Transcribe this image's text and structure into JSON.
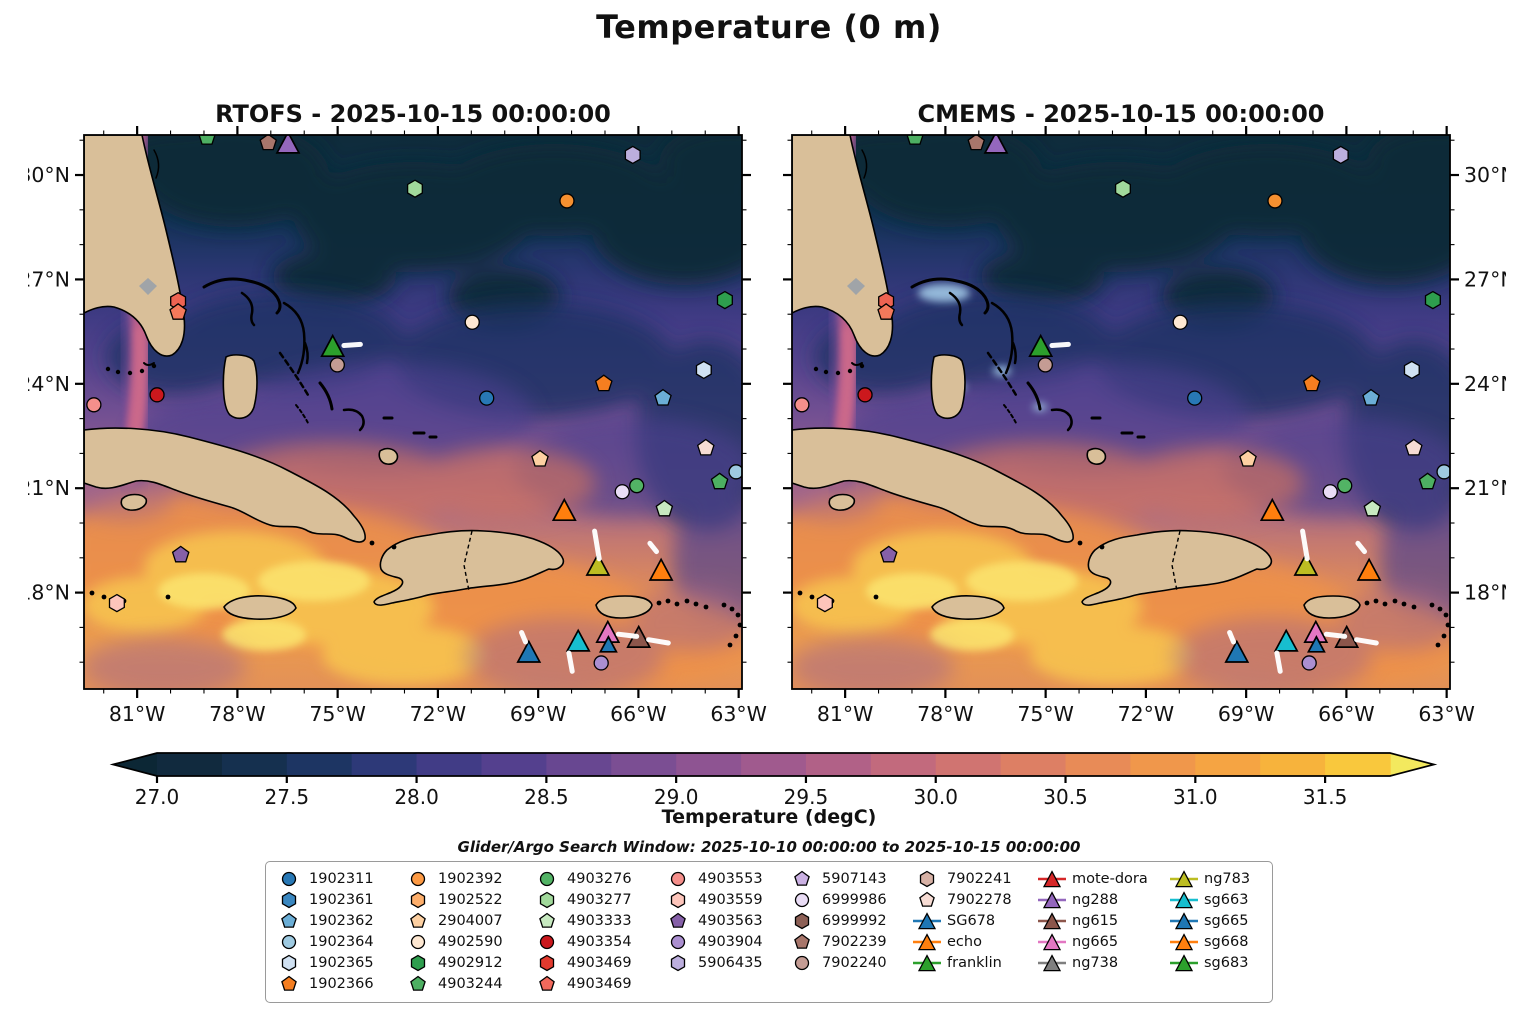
{
  "title": "Temperature (0 m)",
  "chart_data": {
    "type": "heatmap",
    "suptitle": "Temperature (0 m)",
    "subplots": [
      {
        "title": "RTOFS - 2025-10-15 00:00:00",
        "model": "RTOFS"
      },
      {
        "title": "CMEMS - 2025-10-15 00:00:00",
        "model": "CMEMS"
      }
    ],
    "axes": {
      "lon_left_w": 82.59,
      "lon_right_w": 62.9,
      "lat_top_n": 31.15,
      "lat_bottom_n": 15.23,
      "x_major_ticks_w": [
        81,
        78,
        75,
        72,
        69,
        66,
        63
      ],
      "x_tick_labels": [
        "81°W",
        "78°W",
        "75°W",
        "72°W",
        "69°W",
        "66°W",
        "63°W"
      ],
      "y_major_ticks_n": [
        30,
        27,
        24,
        21,
        18
      ],
      "y_tick_labels": [
        "30°N",
        "27°N",
        "24°N",
        "21°N",
        "18°N"
      ],
      "minor_tick_step_deg": 1
    },
    "colorbar": {
      "label": "Temperature (degC)",
      "vmin": 27.0,
      "vmax": 31.75,
      "tick_values": [
        27.0,
        27.5,
        28.0,
        28.5,
        29.0,
        29.5,
        30.0,
        30.5,
        31.0,
        31.5
      ],
      "tick_labels": [
        "27.0",
        "27.5",
        "28.0",
        "28.5",
        "29.0",
        "29.5",
        "30.0",
        "30.5",
        "31.0",
        "31.5"
      ],
      "segment_colors": [
        "#112a3e",
        "#15304f",
        "#1d3563",
        "#2d3978",
        "#413c86",
        "#54408e",
        "#684791",
        "#7b4e93",
        "#8e5492",
        "#a05a8e",
        "#b16187",
        "#c26a7d",
        "#d07471",
        "#dd7f64",
        "#e88b57",
        "#f0974b",
        "#f5a443",
        "#f7b33c",
        "#f9c83d"
      ],
      "under_color": "#0c2735",
      "over_color": "#f3e95e"
    },
    "footnote": "Glider/Argo Search Window: 2025-10-10 00:00:00 to 2025-10-15 00:00:00",
    "style": {
      "land_color": "#d9bf99",
      "coast_color": "#000000",
      "lake_color": "#a0a4a8",
      "track_color": "#ffffff",
      "shallow_bank_color": "#9fc6e4",
      "sea_gradient": [
        [
          0.0,
          "#0f2c3b"
        ],
        [
          0.08,
          "#102e44"
        ],
        [
          0.16,
          "#16335a"
        ],
        [
          0.24,
          "#293671"
        ],
        [
          0.33,
          "#403b84"
        ],
        [
          0.42,
          "#58458e"
        ],
        [
          0.5,
          "#714f92"
        ],
        [
          0.58,
          "#8c5b90"
        ],
        [
          0.66,
          "#a86a85"
        ],
        [
          0.74,
          "#c67a6f"
        ],
        [
          0.82,
          "#de8b5b"
        ],
        [
          0.9,
          "#eb9b4f"
        ],
        [
          1.0,
          "#e39157"
        ]
      ],
      "gulf_stream_halo": "#6d4b96",
      "gulf_stream_core": "#c4628b",
      "gulf_stream_bright": "#d06d8a"
    },
    "legend_columns": [
      [
        {
          "label": "1902311",
          "shape": "circle",
          "color": "#2878b5"
        },
        {
          "label": "1902361",
          "shape": "hexagon",
          "color": "#3a87c0"
        },
        {
          "label": "1902362",
          "shape": "pentagon",
          "color": "#6baed6"
        },
        {
          "label": "1902364",
          "shape": "circle",
          "color": "#9ecae1"
        },
        {
          "label": "1902365",
          "shape": "hexagon",
          "color": "#d0e1f2"
        },
        {
          "label": "1902366",
          "shape": "pentagon",
          "color": "#f57e20"
        }
      ],
      [
        {
          "label": "1902392",
          "shape": "circle",
          "color": "#fd9a44"
        },
        {
          "label": "1902522",
          "shape": "hexagon",
          "color": "#fdae6b"
        },
        {
          "label": "2904007",
          "shape": "pentagon",
          "color": "#fdd0a2"
        },
        {
          "label": "4902590",
          "shape": "circle",
          "color": "#fee8d2"
        },
        {
          "label": "4902912",
          "shape": "hexagon",
          "color": "#2e9e4e"
        },
        {
          "label": "4903244",
          "shape": "pentagon",
          "color": "#4daf62"
        }
      ],
      [
        {
          "label": "4903276",
          "shape": "circle",
          "color": "#52b365"
        },
        {
          "label": "4903277",
          "shape": "hexagon",
          "color": "#a1d99b"
        },
        {
          "label": "4903333",
          "shape": "pentagon",
          "color": "#c7e9c0"
        },
        {
          "label": "4903354",
          "shape": "circle",
          "color": "#cb181d"
        },
        {
          "label": "4903469",
          "shape": "hexagon",
          "color": "#e23a2e"
        },
        {
          "label": "4903469",
          "shape": "pentagon",
          "color": "#f2695c"
        }
      ],
      [
        {
          "label": "4903553",
          "shape": "circle",
          "color": "#f58f8b"
        },
        {
          "label": "4903559",
          "shape": "hexagon",
          "color": "#fdc5bb"
        },
        {
          "label": "4903563",
          "shape": "pentagon",
          "color": "#8660a8"
        },
        {
          "label": "4903904",
          "shape": "circle",
          "color": "#ab8fd0"
        },
        {
          "label": "5906435",
          "shape": "hexagon",
          "color": "#bcaedd"
        }
      ],
      [
        {
          "label": "5907143",
          "shape": "pentagon",
          "color": "#cbb1e3"
        },
        {
          "label": "6999986",
          "shape": "circle",
          "color": "#e9dcf5"
        },
        {
          "label": "6999992",
          "shape": "hexagon",
          "color": "#8d6056"
        },
        {
          "label": "7902239",
          "shape": "pentagon",
          "color": "#a8766b"
        },
        {
          "label": "7902240",
          "shape": "circle",
          "color": "#c49c94"
        }
      ],
      [
        {
          "label": "7902241",
          "shape": "hexagon",
          "color": "#d7b1a5"
        },
        {
          "label": "7902278",
          "shape": "pentagon",
          "color": "#f7dcd4"
        },
        {
          "label": "SG678",
          "shape": "triangle",
          "color": "#1f77b4",
          "line": true
        },
        {
          "label": "echo",
          "shape": "triangle",
          "color": "#ff7f0e",
          "line": true
        },
        {
          "label": "franklin",
          "shape": "triangle",
          "color": "#2ca02c",
          "line": true
        }
      ],
      [
        {
          "label": "mote-dora",
          "shape": "triangle",
          "color": "#d62728",
          "line": true
        },
        {
          "label": "ng288",
          "shape": "triangle",
          "color": "#9467bd",
          "line": true
        },
        {
          "label": "ng615",
          "shape": "triangle",
          "color": "#8c564b",
          "line": true
        },
        {
          "label": "ng665",
          "shape": "triangle",
          "color": "#e377c2",
          "line": true
        },
        {
          "label": "ng738",
          "shape": "triangle",
          "color": "#7f7f7f",
          "line": true
        }
      ],
      [
        {
          "label": "ng783",
          "shape": "triangle",
          "color": "#bcbd22",
          "line": true
        },
        {
          "label": "sg663",
          "shape": "triangle",
          "color": "#17becf",
          "line": true
        },
        {
          "label": "sg665",
          "shape": "triangle",
          "color": "#1f77b4",
          "line": true
        },
        {
          "label": "sg668",
          "shape": "triangle",
          "color": "#ff7f0e",
          "line": true
        },
        {
          "label": "sg683",
          "shape": "triangle",
          "color": "#2ca02c",
          "line": true
        }
      ]
    ],
    "markers": [
      {
        "shape": "pentagon",
        "color": "#4daf62",
        "x": 0.187,
        "y": 0.004
      },
      {
        "shape": "pentagon",
        "color": "#a8766b",
        "x": 0.28,
        "y": 0.014
      },
      {
        "shape": "triangle",
        "color": "#9467bd",
        "x": 0.31,
        "y": 0.016
      },
      {
        "shape": "hexagon",
        "color": "#bcaedd",
        "x": 0.834,
        "y": 0.036
      },
      {
        "shape": "hexagon",
        "color": "#a1d99b",
        "x": 0.503,
        "y": 0.097
      },
      {
        "shape": "circle",
        "color": "#f59030",
        "x": 0.734,
        "y": 0.119
      },
      {
        "shape": "hexagon",
        "color": "#ee6352",
        "x": 0.143,
        "y": 0.3
      },
      {
        "shape": "pentagon",
        "color": "#f4795b",
        "x": 0.143,
        "y": 0.32
      },
      {
        "shape": "hexagon",
        "color": "#2e9e4e",
        "x": 0.974,
        "y": 0.298
      },
      {
        "shape": "circle",
        "color": "#fee8d2",
        "x": 0.59,
        "y": 0.338
      },
      {
        "shape": "triangle",
        "color": "#2ca02c",
        "x": 0.378,
        "y": 0.383,
        "track": [
          [
            0.395,
            0.38
          ],
          [
            0.42,
            0.378
          ]
        ]
      },
      {
        "shape": "circle",
        "color": "#c49c94",
        "x": 0.385,
        "y": 0.415
      },
      {
        "shape": "circle",
        "color": "#cb181d",
        "x": 0.111,
        "y": 0.469
      },
      {
        "shape": "circle",
        "color": "#f58f8b",
        "x": 0.015,
        "y": 0.487
      },
      {
        "shape": "circle",
        "color": "#2878b5",
        "x": 0.612,
        "y": 0.475
      },
      {
        "shape": "pentagon",
        "color": "#f57e20",
        "x": 0.79,
        "y": 0.449
      },
      {
        "shape": "pentagon",
        "color": "#6baed6",
        "x": 0.88,
        "y": 0.475
      },
      {
        "shape": "hexagon",
        "color": "#d0e1f2",
        "x": 0.942,
        "y": 0.424
      },
      {
        "shape": "pentagon",
        "color": "#f7dcd4",
        "x": 0.945,
        "y": 0.565
      },
      {
        "shape": "circle",
        "color": "#9ecae1",
        "x": 0.991,
        "y": 0.608
      },
      {
        "shape": "pentagon",
        "color": "#4daf62",
        "x": 0.966,
        "y": 0.626
      },
      {
        "shape": "pentagon",
        "color": "#fdd0a2",
        "x": 0.693,
        "y": 0.585
      },
      {
        "shape": "circle",
        "color": "#52b365",
        "x": 0.84,
        "y": 0.633
      },
      {
        "shape": "circle",
        "color": "#e9dcf5",
        "x": 0.818,
        "y": 0.644
      },
      {
        "shape": "pentagon",
        "color": "#c7e9c0",
        "x": 0.882,
        "y": 0.675
      },
      {
        "shape": "triangle",
        "color": "#ff7f0e",
        "x": 0.73,
        "y": 0.679
      },
      {
        "shape": "pentagon",
        "color": "#8660a8",
        "x": 0.147,
        "y": 0.758
      },
      {
        "shape": "triangle",
        "color": "#bcbd22",
        "x": 0.781,
        "y": 0.778,
        "track": [
          [
            0.776,
            0.715
          ],
          [
            0.783,
            0.765
          ]
        ]
      },
      {
        "shape": "triangle",
        "color": "#ff7f0e",
        "x": 0.877,
        "y": 0.787,
        "track": [
          [
            0.86,
            0.737
          ],
          [
            0.87,
            0.752
          ]
        ]
      },
      {
        "shape": "hexagon",
        "color": "#fdc5bb",
        "x": 0.05,
        "y": 0.845
      },
      {
        "shape": "triangle",
        "color": "#1f77b4",
        "x": 0.676,
        "y": 0.935,
        "track": [
          [
            0.665,
            0.898
          ],
          [
            0.671,
            0.915
          ]
        ]
      },
      {
        "shape": "triangle",
        "color": "#17becf",
        "x": 0.751,
        "y": 0.915,
        "track": [
          [
            0.737,
            0.935
          ],
          [
            0.742,
            0.968
          ]
        ]
      },
      {
        "shape": "triangle",
        "color": "#e377c2",
        "x": 0.796,
        "y": 0.899,
        "track": [
          [
            0.812,
            0.901
          ],
          [
            0.84,
            0.905
          ]
        ]
      },
      {
        "shape": "triangle",
        "color": "#1f77b4",
        "x": 0.797,
        "y": 0.921,
        "small": true
      },
      {
        "shape": "triangle",
        "color": "#8c564b",
        "x": 0.843,
        "y": 0.908,
        "track": [
          [
            0.858,
            0.911
          ],
          [
            0.888,
            0.917
          ]
        ]
      },
      {
        "shape": "circle",
        "color": "#ab8fd0",
        "x": 0.786,
        "y": 0.953
      }
    ]
  }
}
